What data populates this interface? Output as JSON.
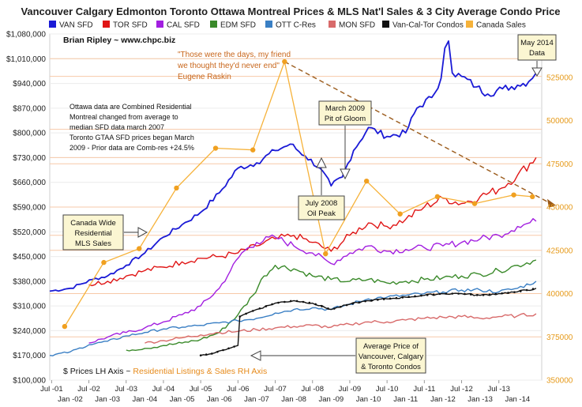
{
  "chart_data": {
    "type": "line",
    "title": "Vancouver Calgary Edmonton Toronto Ottawa Montreal Prices & MLS Nat'l Sales & 3 City Average Condo Price",
    "author": "Brian Ripley ~ www.chpc.biz",
    "axis_note_left": "$ Prices LH Axis ~ ",
    "axis_note_right": "Residential Listings & Sales RH Axis",
    "x_range": [
      2001.45,
      2014.65
    ],
    "y_left": {
      "min": 100000,
      "max": 1080000,
      "ticks": [
        100000,
        170000,
        240000,
        310000,
        380000,
        450000,
        520000,
        590000,
        660000,
        730000,
        800000,
        870000,
        940000,
        1010000,
        1080000
      ],
      "tick_labels": [
        "$100,000",
        "$170,000",
        "$240,000",
        "$310,000",
        "$380,000",
        "$450,000",
        "$520,000",
        "$590,000",
        "$660,000",
        "$730,000",
        "$800,000",
        "$870,000",
        "$940,000",
        "$1,010,000",
        "$1,080,000"
      ]
    },
    "y_right": {
      "min": 350000,
      "max": 550000,
      "ticks": [
        350000,
        375000,
        400000,
        425000,
        450000,
        475000,
        500000,
        525000
      ],
      "tick_labels": [
        "350000",
        "375000",
        "400000",
        "425000",
        "450000",
        "475000",
        "500000",
        "525000"
      ]
    },
    "x_ticks_top": [
      {
        "year": 2001.5,
        "label": "Jul -01"
      },
      {
        "year": 2002.5,
        "label": "Jul -02"
      },
      {
        "year": 2003.5,
        "label": "Jul -03"
      },
      {
        "year": 2004.5,
        "label": "Jul -04"
      },
      {
        "year": 2005.5,
        "label": "Jul -05"
      },
      {
        "year": 2006.5,
        "label": "Jul -06"
      },
      {
        "year": 2007.5,
        "label": "Jul -07"
      },
      {
        "year": 2008.5,
        "label": "Jul -08"
      },
      {
        "year": 2009.5,
        "label": "Jul -09"
      },
      {
        "year": 2010.5,
        "label": "Jul -10"
      },
      {
        "year": 2011.5,
        "label": "Jul -11"
      },
      {
        "year": 2012.5,
        "label": "Jul -12"
      },
      {
        "year": 2013.5,
        "label": "Jul -13"
      }
    ],
    "x_ticks_bottom": [
      {
        "year": 2002.0,
        "label": "Jan -02"
      },
      {
        "year": 2003.0,
        "label": "Jan -03"
      },
      {
        "year": 2004.0,
        "label": "Jan -04"
      },
      {
        "year": 2005.0,
        "label": "Jan -05"
      },
      {
        "year": 2006.0,
        "label": "Jan -06"
      },
      {
        "year": 2007.0,
        "label": "Jan -07"
      },
      {
        "year": 2008.0,
        "label": "Jan -08"
      },
      {
        "year": 2009.0,
        "label": "Jan -09"
      },
      {
        "year": 2010.0,
        "label": "Jan -10"
      },
      {
        "year": 2011.0,
        "label": "Jan -11"
      },
      {
        "year": 2012.0,
        "label": "Jan -12"
      },
      {
        "year": 2013.0,
        "label": "Jan -13"
      },
      {
        "year": 2014.0,
        "label": "Jan -14"
      }
    ],
    "series": [
      {
        "name": "VAN SFD",
        "color": "#1a1ad6",
        "axis": "left",
        "noise": 0.012,
        "points": [
          [
            2001.45,
            352000
          ],
          [
            2002.0,
            360000
          ],
          [
            2002.6,
            385000
          ],
          [
            2003.0,
            395000
          ],
          [
            2003.5,
            425000
          ],
          [
            2004.0,
            460000
          ],
          [
            2004.5,
            505000
          ],
          [
            2005.0,
            540000
          ],
          [
            2005.5,
            575000
          ],
          [
            2006.0,
            630000
          ],
          [
            2006.5,
            700000
          ],
          [
            2007.0,
            715000
          ],
          [
            2007.5,
            750000
          ],
          [
            2007.9,
            768000
          ],
          [
            2008.3,
            735000
          ],
          [
            2008.7,
            700000
          ],
          [
            2009.0,
            650000
          ],
          [
            2009.3,
            675000
          ],
          [
            2009.6,
            750000
          ],
          [
            2010.0,
            815000
          ],
          [
            2010.5,
            790000
          ],
          [
            2011.0,
            800000
          ],
          [
            2011.3,
            870000
          ],
          [
            2011.7,
            900000
          ],
          [
            2011.95,
            955000
          ],
          [
            2012.05,
            1040000
          ],
          [
            2012.15,
            1060000
          ],
          [
            2012.25,
            970000
          ],
          [
            2012.5,
            960000
          ],
          [
            2012.9,
            930000
          ],
          [
            2013.2,
            910000
          ],
          [
            2013.6,
            925000
          ],
          [
            2014.0,
            935000
          ],
          [
            2014.3,
            945000
          ],
          [
            2014.5,
            970000
          ]
        ]
      },
      {
        "name": "TOR SFD",
        "color": "#e01515",
        "axis": "left",
        "noise": 0.02,
        "points": [
          [
            2002.5,
            370000
          ],
          [
            2003.0,
            380000
          ],
          [
            2003.5,
            395000
          ],
          [
            2004.0,
            410000
          ],
          [
            2004.5,
            420000
          ],
          [
            2005.0,
            435000
          ],
          [
            2005.5,
            445000
          ],
          [
            2006.0,
            450000
          ],
          [
            2006.5,
            460000
          ],
          [
            2007.0,
            480000
          ],
          [
            2007.5,
            500000
          ],
          [
            2008.0,
            510000
          ],
          [
            2008.5,
            490000
          ],
          [
            2009.0,
            465000
          ],
          [
            2009.5,
            510000
          ],
          [
            2010.0,
            545000
          ],
          [
            2010.5,
            535000
          ],
          [
            2011.0,
            555000
          ],
          [
            2011.5,
            590000
          ],
          [
            2012.0,
            615000
          ],
          [
            2012.5,
            600000
          ],
          [
            2013.0,
            620000
          ],
          [
            2013.5,
            640000
          ],
          [
            2014.0,
            680000
          ],
          [
            2014.5,
            730000
          ]
        ]
      },
      {
        "name": "CAL SFD",
        "color": "#a21fe0",
        "axis": "left",
        "noise": 0.02,
        "points": [
          [
            2002.5,
            205000
          ],
          [
            2003.0,
            222000
          ],
          [
            2003.5,
            235000
          ],
          [
            2004.0,
            248000
          ],
          [
            2004.5,
            265000
          ],
          [
            2005.0,
            285000
          ],
          [
            2005.5,
            310000
          ],
          [
            2006.0,
            360000
          ],
          [
            2006.3,
            410000
          ],
          [
            2006.6,
            460000
          ],
          [
            2007.0,
            490000
          ],
          [
            2007.5,
            505000
          ],
          [
            2008.0,
            480000
          ],
          [
            2008.5,
            460000
          ],
          [
            2009.0,
            430000
          ],
          [
            2009.5,
            460000
          ],
          [
            2010.0,
            480000
          ],
          [
            2010.5,
            465000
          ],
          [
            2011.0,
            470000
          ],
          [
            2011.5,
            475000
          ],
          [
            2012.0,
            480000
          ],
          [
            2012.5,
            490000
          ],
          [
            2013.0,
            500000
          ],
          [
            2013.5,
            510000
          ],
          [
            2014.0,
            535000
          ],
          [
            2014.5,
            550000
          ]
        ]
      },
      {
        "name": "EDM SFD",
        "color": "#3a8a2a",
        "axis": "left",
        "noise": 0.02,
        "points": [
          [
            2003.5,
            185000
          ],
          [
            2004.0,
            190000
          ],
          [
            2004.5,
            198000
          ],
          [
            2005.0,
            205000
          ],
          [
            2005.5,
            215000
          ],
          [
            2006.0,
            235000
          ],
          [
            2006.5,
            285000
          ],
          [
            2006.9,
            340000
          ],
          [
            2007.2,
            395000
          ],
          [
            2007.5,
            425000
          ],
          [
            2008.0,
            415000
          ],
          [
            2008.5,
            395000
          ],
          [
            2009.0,
            385000
          ],
          [
            2009.5,
            380000
          ],
          [
            2010.0,
            385000
          ],
          [
            2010.5,
            375000
          ],
          [
            2011.0,
            380000
          ],
          [
            2011.5,
            385000
          ],
          [
            2012.0,
            390000
          ],
          [
            2012.5,
            395000
          ],
          [
            2013.0,
            400000
          ],
          [
            2013.5,
            410000
          ],
          [
            2014.0,
            425000
          ],
          [
            2014.5,
            440000
          ]
        ]
      },
      {
        "name": "OTT C-Res",
        "color": "#3a7fc4",
        "axis": "left",
        "noise": 0.015,
        "points": [
          [
            2001.45,
            170000
          ],
          [
            2002.0,
            180000
          ],
          [
            2002.5,
            200000
          ],
          [
            2003.0,
            210000
          ],
          [
            2003.5,
            225000
          ],
          [
            2004.0,
            235000
          ],
          [
            2004.5,
            245000
          ],
          [
            2005.0,
            250000
          ],
          [
            2005.5,
            255000
          ],
          [
            2006.0,
            262000
          ],
          [
            2006.5,
            268000
          ],
          [
            2007.0,
            275000
          ],
          [
            2007.5,
            290000
          ],
          [
            2008.0,
            300000
          ],
          [
            2008.5,
            305000
          ],
          [
            2009.0,
            300000
          ],
          [
            2009.5,
            315000
          ],
          [
            2010.0,
            330000
          ],
          [
            2010.5,
            335000
          ],
          [
            2011.0,
            340000
          ],
          [
            2011.5,
            345000
          ],
          [
            2012.0,
            350000
          ],
          [
            2012.5,
            355000
          ],
          [
            2013.0,
            355000
          ],
          [
            2013.5,
            350000
          ],
          [
            2014.0,
            360000
          ],
          [
            2014.5,
            380000
          ]
        ]
      },
      {
        "name": "MON SFD",
        "color": "#d86a6a",
        "axis": "left",
        "noise": 0.018,
        "points": [
          [
            2004.0,
            205000
          ],
          [
            2004.5,
            212000
          ],
          [
            2005.0,
            220000
          ],
          [
            2005.5,
            228000
          ],
          [
            2006.0,
            235000
          ],
          [
            2006.5,
            238000
          ],
          [
            2007.0,
            243000
          ],
          [
            2007.5,
            248000
          ],
          [
            2008.0,
            252000
          ],
          [
            2008.5,
            255000
          ],
          [
            2009.0,
            250000
          ],
          [
            2009.5,
            258000
          ],
          [
            2010.0,
            265000
          ],
          [
            2010.5,
            265000
          ],
          [
            2011.0,
            270000
          ],
          [
            2011.5,
            275000
          ],
          [
            2012.0,
            278000
          ],
          [
            2012.5,
            280000
          ],
          [
            2013.0,
            275000
          ],
          [
            2013.5,
            280000
          ],
          [
            2014.0,
            282000
          ],
          [
            2014.5,
            288000
          ]
        ]
      },
      {
        "name": "Van-Cal-Tor Condos",
        "color": "#111111",
        "axis": "left",
        "noise": 0.008,
        "dotted": true,
        "points": [
          [
            2005.5,
            170000
          ],
          [
            2005.8,
            175000
          ],
          [
            2006.1,
            185000
          ],
          [
            2006.4,
            195000
          ],
          [
            2006.5,
            198000
          ],
          [
            2006.55,
            280000
          ],
          [
            2006.8,
            292000
          ],
          [
            2007.0,
            300000
          ],
          [
            2007.5,
            318000
          ],
          [
            2008.0,
            325000
          ],
          [
            2008.5,
            318000
          ],
          [
            2009.0,
            300000
          ],
          [
            2009.5,
            315000
          ],
          [
            2010.0,
            325000
          ],
          [
            2010.5,
            330000
          ],
          [
            2011.0,
            335000
          ],
          [
            2011.5,
            340000
          ],
          [
            2012.0,
            345000
          ],
          [
            2012.5,
            345000
          ],
          [
            2013.0,
            340000
          ],
          [
            2013.5,
            345000
          ],
          [
            2014.0,
            350000
          ],
          [
            2014.5,
            360000
          ]
        ]
      },
      {
        "name": "Canada Sales",
        "color": "#f6b23a",
        "axis": "right",
        "markers": true,
        "points": [
          [
            2001.85,
            381000
          ],
          [
            2002.9,
            418000
          ],
          [
            2003.85,
            426000
          ],
          [
            2004.85,
            461000
          ],
          [
            2005.9,
            484000
          ],
          [
            2006.9,
            483000
          ],
          [
            2007.75,
            534000
          ],
          [
            2008.85,
            423000
          ],
          [
            2009.95,
            465000
          ],
          [
            2010.85,
            446000
          ],
          [
            2011.85,
            456000
          ],
          [
            2012.85,
            452000
          ],
          [
            2013.9,
            457000
          ],
          [
            2014.4,
            456000
          ]
        ]
      }
    ],
    "hlines_left": [
      1010000,
      960000,
      810000,
      730000,
      510000
    ],
    "hlines_right": [
      475000,
      450000,
      425000,
      400000,
      375000
    ],
    "annotations": {
      "ottawa_note": [
        "Ottawa data are Combined Residential",
        "Montreal changed from average to",
        "median SFD data march 2007",
        "Toronto GTAA SFD prices began March",
        "2009 - Prior data are Comb-res +24.5%"
      ],
      "quote": [
        "\"Those were the days, my friend",
        "we thought they'd never end\"",
        "Eugene Raskin"
      ],
      "may_2014": [
        "May 2014",
        "Data"
      ],
      "march_2009": [
        "March 2009",
        "Pit of Gloom"
      ],
      "july_2008": [
        "July 2008",
        "Oil Peak"
      ],
      "canada_wide": [
        "Canada Wide",
        "Residential",
        "MLS Sales"
      ],
      "average_price": [
        "Average Price of",
        "Vancouver, Calgary",
        "& Toronto Condos"
      ]
    }
  }
}
